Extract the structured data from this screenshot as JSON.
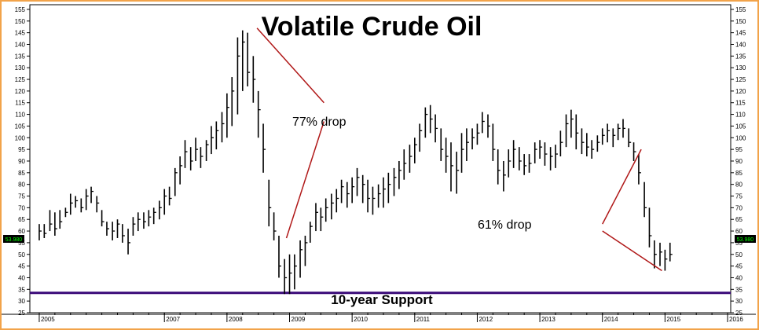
{
  "chart_data": {
    "type": "ohlc",
    "title": "Volatile Crude Oil",
    "ylim": [
      25,
      157
    ],
    "yticks": [
      25,
      30,
      35,
      40,
      45,
      50,
      55,
      60,
      65,
      70,
      75,
      80,
      85,
      90,
      95,
      100,
      105,
      110,
      115,
      120,
      125,
      130,
      135,
      140,
      145,
      150,
      155
    ],
    "x_range": [
      2004.85,
      2016.05
    ],
    "year_labels": [
      "2005",
      "2007",
      "2008",
      "2009",
      "2010",
      "2011",
      "2012",
      "2013",
      "2014",
      "2015",
      "2016"
    ],
    "year_positions": [
      2005,
      2007,
      2008,
      2009,
      2010,
      2011,
      2012,
      2013,
      2014,
      2015,
      2016
    ],
    "last_price_tag": "53.980",
    "last_price": 53.98,
    "support": {
      "value": 33.5,
      "label": "10-year Support",
      "color": "#3a0a78"
    },
    "annotations": [
      {
        "text": "77% drop",
        "color_lines": "#b01818"
      },
      {
        "text": "61% drop",
        "color_lines": "#b01818"
      }
    ],
    "drop_lines": [
      {
        "from": [
          2008.48,
          147
        ],
        "to": [
          2009.55,
          115
        ]
      },
      {
        "from": [
          2008.95,
          57
        ],
        "to": [
          2009.55,
          107
        ]
      },
      {
        "from": [
          2014.0,
          63
        ],
        "to": [
          2014.62,
          95
        ]
      },
      {
        "from": [
          2014.0,
          60
        ],
        "to": [
          2014.95,
          43
        ]
      }
    ],
    "bars": [
      [
        2005.0,
        56,
        63,
        60
      ],
      [
        2005.08,
        57,
        63,
        59
      ],
      [
        2005.17,
        60,
        69,
        63
      ],
      [
        2005.25,
        58,
        68,
        61
      ],
      [
        2005.33,
        61,
        69,
        64
      ],
      [
        2005.42,
        66,
        70,
        68
      ],
      [
        2005.5,
        67,
        76,
        72
      ],
      [
        2005.58,
        70,
        75,
        73
      ],
      [
        2005.67,
        68,
        74,
        70
      ],
      [
        2005.75,
        69,
        78,
        75
      ],
      [
        2005.83,
        72,
        79,
        77
      ],
      [
        2005.92,
        68,
        75,
        72
      ],
      [
        2006.0,
        62,
        69,
        64
      ],
      [
        2006.08,
        58,
        64,
        61
      ],
      [
        2006.17,
        56,
        64,
        60
      ],
      [
        2006.25,
        57,
        65,
        63
      ],
      [
        2006.33,
        55,
        63,
        58
      ],
      [
        2006.42,
        50,
        61,
        55
      ],
      [
        2006.5,
        58,
        66,
        63
      ],
      [
        2006.58,
        60,
        68,
        65
      ],
      [
        2006.67,
        61,
        68,
        64
      ],
      [
        2006.75,
        62,
        69,
        66
      ],
      [
        2006.83,
        63,
        70,
        68
      ],
      [
        2006.92,
        65,
        73,
        70
      ],
      [
        2007.0,
        67,
        78,
        75
      ],
      [
        2007.08,
        71,
        79,
        74
      ],
      [
        2007.17,
        75,
        87,
        85
      ],
      [
        2007.25,
        80,
        92,
        88
      ],
      [
        2007.33,
        87,
        99,
        94
      ],
      [
        2007.42,
        86,
        96,
        90
      ],
      [
        2007.5,
        90,
        100,
        95
      ],
      [
        2007.58,
        87,
        96,
        92
      ],
      [
        2007.67,
        90,
        99,
        97
      ],
      [
        2007.75,
        93,
        105,
        100
      ],
      [
        2007.83,
        95,
        107,
        103
      ],
      [
        2007.92,
        98,
        111,
        106
      ],
      [
        2008.0,
        100,
        119,
        113
      ],
      [
        2008.08,
        105,
        126,
        120
      ],
      [
        2008.17,
        110,
        143,
        135
      ],
      [
        2008.25,
        120,
        146,
        141
      ],
      [
        2008.33,
        122,
        145,
        128
      ],
      [
        2008.42,
        115,
        135,
        125
      ],
      [
        2008.5,
        100,
        120,
        112
      ],
      [
        2008.58,
        85,
        106,
        95
      ],
      [
        2008.67,
        62,
        82,
        70
      ],
      [
        2008.75,
        56,
        68,
        60
      ],
      [
        2008.83,
        40,
        58,
        45
      ],
      [
        2008.92,
        33,
        48,
        40
      ],
      [
        2009.0,
        33,
        50,
        42
      ],
      [
        2009.08,
        35,
        50,
        45
      ],
      [
        2009.17,
        40,
        56,
        52
      ],
      [
        2009.25,
        45,
        58,
        55
      ],
      [
        2009.33,
        55,
        64,
        62
      ],
      [
        2009.42,
        60,
        72,
        68
      ],
      [
        2009.5,
        60,
        70,
        66
      ],
      [
        2009.58,
        64,
        74,
        70
      ],
      [
        2009.67,
        65,
        76,
        72
      ],
      [
        2009.75,
        68,
        78,
        74
      ],
      [
        2009.83,
        72,
        82,
        79
      ],
      [
        2009.92,
        70,
        81,
        76
      ],
      [
        2010.0,
        72,
        83,
        79
      ],
      [
        2010.08,
        75,
        87,
        83
      ],
      [
        2010.17,
        72,
        84,
        80
      ],
      [
        2010.25,
        68,
        82,
        74
      ],
      [
        2010.33,
        67,
        79,
        74
      ],
      [
        2010.42,
        70,
        80,
        76
      ],
      [
        2010.5,
        70,
        83,
        78
      ],
      [
        2010.58,
        72,
        85,
        80
      ],
      [
        2010.67,
        75,
        87,
        83
      ],
      [
        2010.75,
        78,
        90,
        86
      ],
      [
        2010.83,
        82,
        95,
        89
      ],
      [
        2010.92,
        85,
        97,
        92
      ],
      [
        2011.0,
        89,
        100,
        97
      ],
      [
        2011.08,
        94,
        106,
        103
      ],
      [
        2011.17,
        100,
        113,
        110
      ],
      [
        2011.25,
        102,
        114,
        108
      ],
      [
        2011.33,
        98,
        110,
        104
      ],
      [
        2011.42,
        90,
        104,
        95
      ],
      [
        2011.5,
        85,
        100,
        92
      ],
      [
        2011.58,
        77,
        98,
        88
      ],
      [
        2011.67,
        76,
        94,
        86
      ],
      [
        2011.75,
        85,
        102,
        95
      ],
      [
        2011.83,
        90,
        104,
        98
      ],
      [
        2011.92,
        95,
        104,
        100
      ],
      [
        2012.0,
        97,
        106,
        102
      ],
      [
        2012.08,
        102,
        111,
        107
      ],
      [
        2012.17,
        100,
        110,
        105
      ],
      [
        2012.25,
        90,
        106,
        95
      ],
      [
        2012.33,
        80,
        95,
        86
      ],
      [
        2012.42,
        77,
        90,
        84
      ],
      [
        2012.5,
        83,
        95,
        90
      ],
      [
        2012.58,
        87,
        99,
        95
      ],
      [
        2012.67,
        86,
        96,
        90
      ],
      [
        2012.75,
        84,
        93,
        88
      ],
      [
        2012.83,
        85,
        93,
        89
      ],
      [
        2012.92,
        89,
        98,
        95
      ],
      [
        2013.0,
        91,
        99,
        96
      ],
      [
        2013.08,
        88,
        98,
        93
      ],
      [
        2013.17,
        86,
        96,
        92
      ],
      [
        2013.25,
        87,
        97,
        93
      ],
      [
        2013.33,
        92,
        103,
        98
      ],
      [
        2013.42,
        96,
        110,
        106
      ],
      [
        2013.5,
        100,
        112,
        108
      ],
      [
        2013.58,
        95,
        110,
        102
      ],
      [
        2013.67,
        93,
        104,
        98
      ],
      [
        2013.75,
        92,
        102,
        96
      ],
      [
        2013.83,
        91,
        99,
        95
      ],
      [
        2013.92,
        94,
        101,
        98
      ],
      [
        2014.0,
        97,
        104,
        101
      ],
      [
        2014.08,
        98,
        106,
        103
      ],
      [
        2014.17,
        96,
        104,
        101
      ],
      [
        2014.25,
        99,
        106,
        104
      ],
      [
        2014.33,
        100,
        108,
        104
      ],
      [
        2014.42,
        96,
        104,
        98
      ],
      [
        2014.5,
        90,
        98,
        94
      ],
      [
        2014.58,
        80,
        93,
        85
      ],
      [
        2014.67,
        66,
        81,
        70
      ],
      [
        2014.75,
        53,
        70,
        58
      ],
      [
        2014.83,
        44,
        56,
        50
      ],
      [
        2014.92,
        45,
        55,
        51
      ],
      [
        2015.0,
        43,
        52,
        48
      ],
      [
        2015.08,
        47,
        55,
        50
      ]
    ]
  }
}
